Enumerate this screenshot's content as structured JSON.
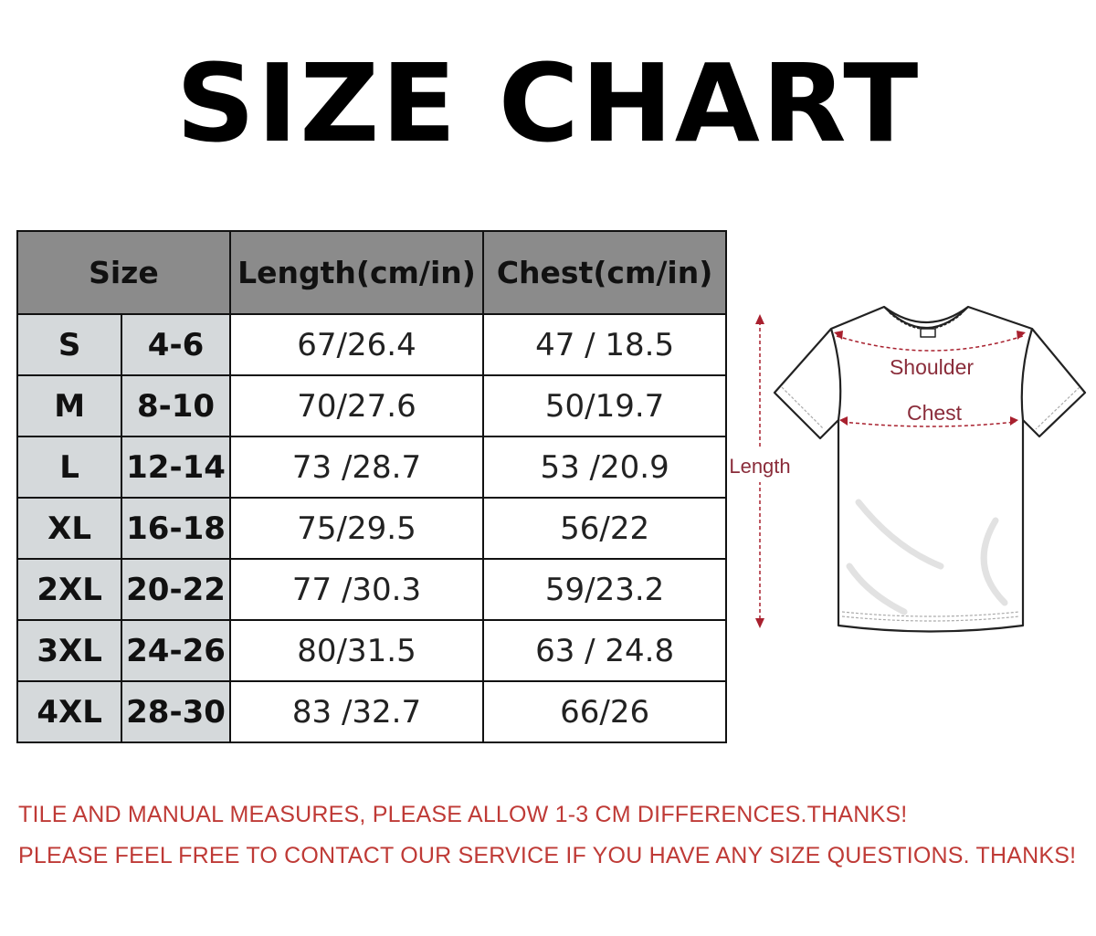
{
  "title": "SIZE CHART",
  "table": {
    "headers": [
      "Size",
      "Length(cm/in)",
      "Chest(cm/in)"
    ],
    "rows": [
      {
        "size": "S",
        "age": "4-6",
        "length": "67/26.4",
        "chest": "47 / 18.5"
      },
      {
        "size": "M",
        "age": "8-10",
        "length": "70/27.6",
        "chest": "50/19.7"
      },
      {
        "size": "L",
        "age": "12-14",
        "length": "73 /28.7",
        "chest": "53 /20.9"
      },
      {
        "size": "XL",
        "age": "16-18",
        "length": "75/29.5",
        "chest": "56/22"
      },
      {
        "size": "2XL",
        "age": "20-22",
        "length": "77 /30.3",
        "chest": "59/23.2"
      },
      {
        "size": "3XL",
        "age": "24-26",
        "length": "80/31.5",
        "chest": "63 / 24.8"
      },
      {
        "size": "4XL",
        "age": "28-30",
        "length": "83 /32.7",
        "chest": "66/26"
      }
    ]
  },
  "diagram": {
    "shoulder_label": "Shoulder",
    "chest_label": "Chest",
    "length_label": "Length",
    "accent_color": "#a8202e"
  },
  "notes": [
    "TILE AND MANUAL MEASURES, PLEASE ALLOW 1-3 CM DIFFERENCES.THANKS!",
    "PLEASE FEEL FREE TO CONTACT OUR SERVICE IF YOU HAVE ANY SIZE QUESTIONS. THANKS!"
  ]
}
